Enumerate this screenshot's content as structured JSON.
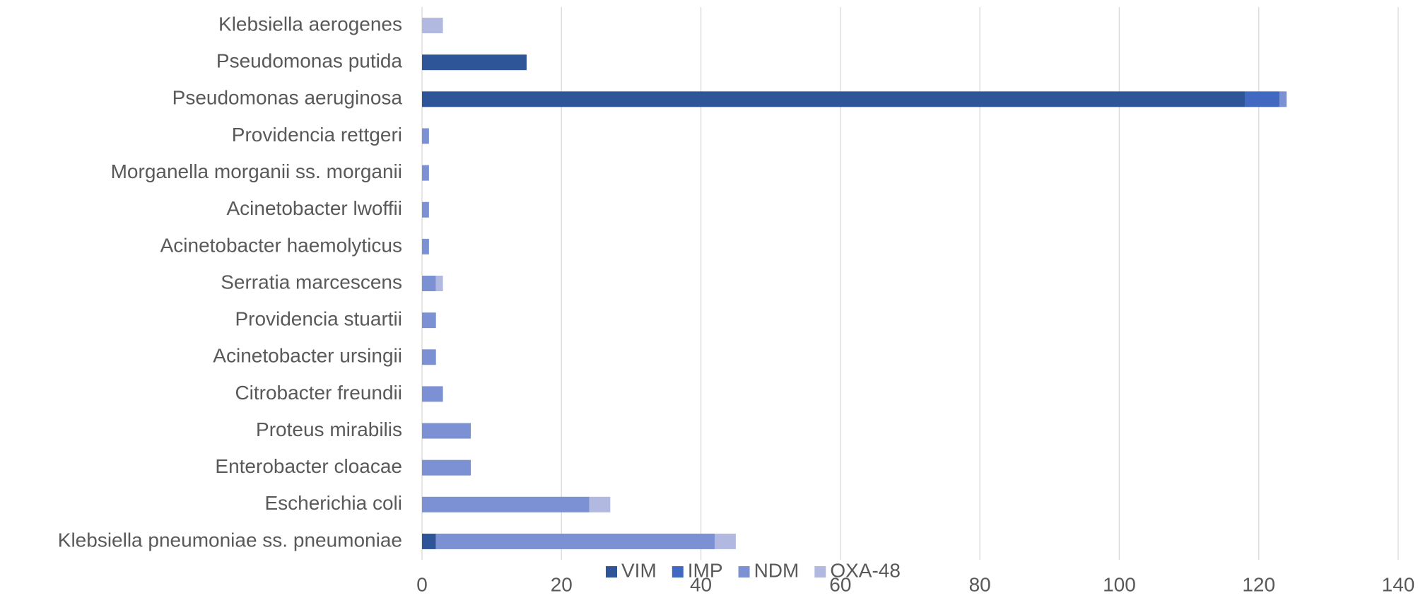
{
  "chart_data": {
    "type": "stacked_barh",
    "categories": [
      "Klebsiella pneumoniae ss. pneumoniae",
      "Escherichia coli",
      "Enterobacter cloacae",
      "Proteus mirabilis",
      "Citrobacter freundii",
      "Acinetobacter ursingii",
      "Providencia stuartii",
      "Serratia marcescens",
      "Acinetobacter haemolyticus",
      "Acinetobacter lwoffii",
      "Morganella morganii ss. morganii",
      "Providencia rettgeri",
      "Pseudomonas aeruginosa",
      "Pseudomonas putida",
      "Klebsiella aerogenes"
    ],
    "series": [
      {
        "name": "VIM",
        "color": "#2e5597",
        "values": [
          2,
          0,
          0,
          0,
          0,
          0,
          0,
          0,
          0,
          0,
          0,
          0,
          118,
          15,
          0
        ]
      },
      {
        "name": "IMP",
        "color": "#4169c1",
        "values": [
          0,
          0,
          0,
          0,
          0,
          0,
          0,
          0,
          0,
          0,
          0,
          0,
          5,
          0,
          0
        ]
      },
      {
        "name": "NDM",
        "color": "#7b91d3",
        "values": [
          40,
          24,
          7,
          7,
          3,
          2,
          2,
          2,
          1,
          1,
          1,
          1,
          1,
          0,
          0
        ]
      },
      {
        "name": "OXA-48",
        "color": "#b1b9e0",
        "values": [
          3,
          3,
          0,
          0,
          0,
          0,
          0,
          1,
          0,
          0,
          0,
          0,
          0,
          0,
          3
        ]
      }
    ],
    "xlim": [
      0,
      140
    ],
    "xticks": [
      0,
      20,
      40,
      60,
      80,
      100,
      120,
      140
    ],
    "grid": true,
    "legend": "bottom"
  }
}
